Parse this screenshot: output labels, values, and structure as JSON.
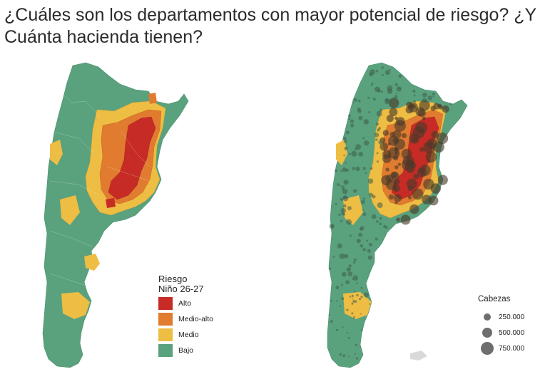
{
  "title": "¿Cuáles son los departamentos con mayor potencial de riesgo? ¿Y Cuánta hacienda tienen?",
  "risk_legend": {
    "title_line1": "Riesgo",
    "title_line2": "Niño 26-27",
    "items": [
      {
        "label": "Alto",
        "color": "#c62b26"
      },
      {
        "label": "Medio-alto",
        "color": "#e07b2f"
      },
      {
        "label": "Medio",
        "color": "#eebd43"
      },
      {
        "label": "Bajo",
        "color": "#5aa17d"
      }
    ]
  },
  "size_legend": {
    "title": "Cabezas",
    "items": [
      {
        "label": "250.000"
      },
      {
        "label": "500.000"
      },
      {
        "label": "750.000"
      }
    ]
  }
}
